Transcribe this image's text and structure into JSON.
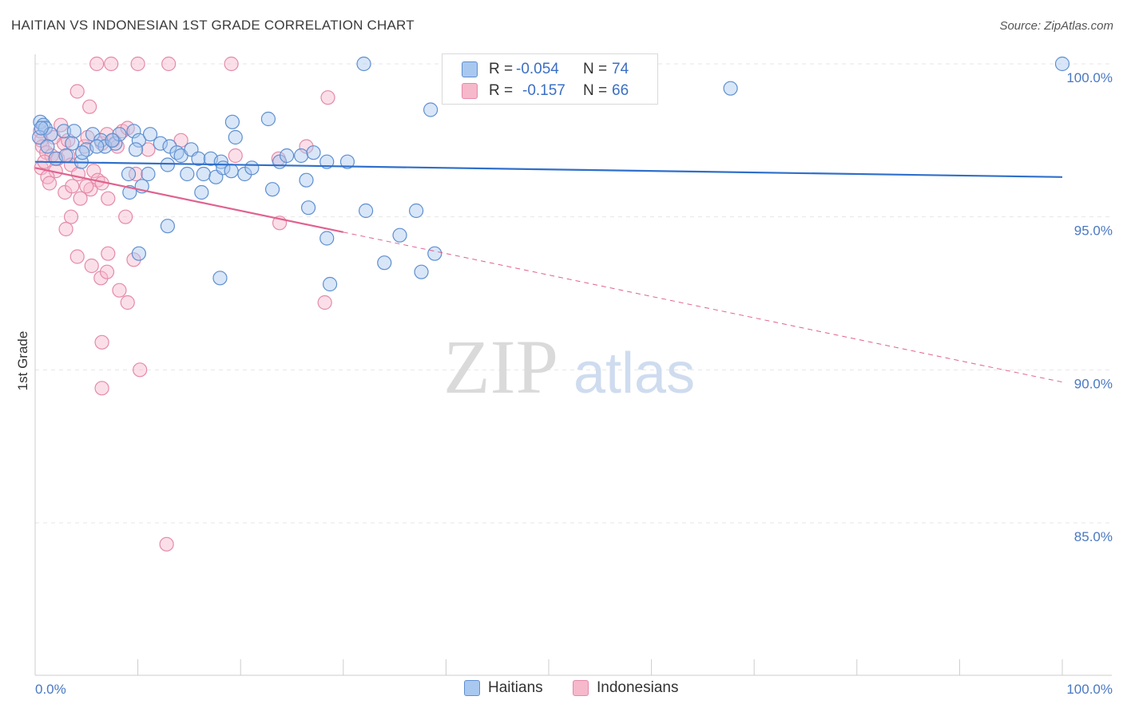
{
  "title": "HAITIAN VS INDONESIAN 1ST GRADE CORRELATION CHART",
  "source": "Source: ZipAtlas.com",
  "watermark": {
    "zip": "ZIP",
    "atlas": "atlas"
  },
  "colors": {
    "blue_fill": "#a9c8ef",
    "blue_stroke": "#5e8fd0",
    "blue_line": "#2f6fcb",
    "pink_fill": "#f6b8cb",
    "pink_stroke": "#e58aa8",
    "pink_line": "#e0628f",
    "tick_text": "#4a78c2",
    "grid": "#e6e6e6"
  },
  "legend": {
    "rows": [
      {
        "r_label": "R =",
        "r_value": "-0.054",
        "n_label": "N =",
        "n_value": "74"
      },
      {
        "r_label": "R =",
        "r_value": "-0.157",
        "n_label": "N =",
        "n_value": "66"
      }
    ]
  },
  "chart_data": {
    "type": "scatter",
    "title": "HAITIAN VS INDONESIAN 1ST GRADE CORRELATION CHART",
    "xlabel": "",
    "ylabel": "1st Grade",
    "xlim": [
      0,
      100
    ],
    "ylim": [
      80.5,
      100.8
    ],
    "x_tick_labels": [
      "0.0%",
      "100.0%"
    ],
    "y_ticks": [
      100,
      95,
      90,
      85
    ],
    "y_tick_labels": [
      "100.0%",
      "95.0%",
      "90.0%",
      "85.0%"
    ],
    "grid": true,
    "series": [
      {
        "name": "Haitians",
        "r": -0.054,
        "n": 74,
        "trend": {
          "x0": 0,
          "y0": 96.8,
          "x1": 100,
          "y1": 96.3,
          "solid_until": 100
        },
        "points": [
          [
            0.5,
            98.1
          ],
          [
            0.8,
            98.0
          ],
          [
            1.0,
            97.9
          ],
          [
            0.4,
            97.6
          ],
          [
            1.5,
            97.7
          ],
          [
            2.8,
            97.8
          ],
          [
            3.8,
            97.8
          ],
          [
            3.6,
            97.4
          ],
          [
            5.0,
            97.2
          ],
          [
            5.6,
            97.7
          ],
          [
            6.4,
            97.5
          ],
          [
            6.8,
            97.3
          ],
          [
            7.8,
            97.4
          ],
          [
            8.2,
            97.7
          ],
          [
            9.6,
            97.8
          ],
          [
            10.1,
            97.5
          ],
          [
            11.2,
            97.7
          ],
          [
            12.2,
            97.4
          ],
          [
            13.1,
            97.3
          ],
          [
            13.8,
            97.1
          ],
          [
            14.2,
            97.0
          ],
          [
            15.2,
            97.2
          ],
          [
            15.9,
            96.9
          ],
          [
            16.4,
            96.4
          ],
          [
            17.1,
            96.9
          ],
          [
            17.6,
            96.3
          ],
          [
            18.1,
            96.8
          ],
          [
            19.2,
            98.1
          ],
          [
            19.5,
            97.6
          ],
          [
            20.4,
            96.4
          ],
          [
            21.1,
            96.6
          ],
          [
            22.7,
            98.2
          ],
          [
            23.8,
            96.8
          ],
          [
            24.5,
            97.0
          ],
          [
            25.9,
            97.0
          ],
          [
            26.4,
            96.2
          ],
          [
            27.1,
            97.1
          ],
          [
            9.1,
            96.4
          ],
          [
            9.2,
            95.8
          ],
          [
            10.4,
            96.0
          ],
          [
            11.0,
            96.4
          ],
          [
            12.9,
            96.7
          ],
          [
            14.8,
            96.4
          ],
          [
            16.2,
            95.8
          ],
          [
            18.3,
            96.6
          ],
          [
            19.1,
            96.5
          ],
          [
            23.1,
            95.9
          ],
          [
            26.6,
            95.3
          ],
          [
            32.2,
            95.2
          ],
          [
            37.1,
            95.2
          ],
          [
            28.4,
            96.8
          ],
          [
            30.4,
            96.8
          ],
          [
            12.9,
            94.7
          ],
          [
            10.1,
            93.8
          ],
          [
            18.0,
            93.0
          ],
          [
            28.4,
            94.3
          ],
          [
            35.5,
            94.4
          ],
          [
            34.0,
            93.5
          ],
          [
            37.6,
            93.2
          ],
          [
            38.9,
            93.8
          ],
          [
            28.7,
            92.8
          ],
          [
            32.0,
            100.0
          ],
          [
            38.5,
            98.5
          ],
          [
            67.7,
            99.2
          ],
          [
            100.0,
            100.0
          ],
          [
            0.6,
            97.9
          ],
          [
            1.2,
            97.3
          ],
          [
            2.0,
            96.9
          ],
          [
            4.5,
            96.8
          ],
          [
            6.0,
            97.3
          ],
          [
            3.0,
            97.0
          ],
          [
            7.5,
            97.5
          ],
          [
            9.8,
            97.2
          ],
          [
            4.6,
            97.1
          ]
        ]
      },
      {
        "name": "Indonesians",
        "r": -0.157,
        "n": 66,
        "trend": {
          "x0": 0,
          "y0": 96.6,
          "x1": 100,
          "y1": 89.6,
          "solid_until": 30
        },
        "points": [
          [
            6.0,
            100.0
          ],
          [
            7.4,
            100.0
          ],
          [
            10.0,
            100.0
          ],
          [
            13.0,
            100.0
          ],
          [
            19.1,
            100.0
          ],
          [
            4.1,
            99.1
          ],
          [
            5.3,
            98.6
          ],
          [
            28.5,
            98.9
          ],
          [
            0.5,
            97.8
          ],
          [
            0.6,
            97.5
          ],
          [
            0.7,
            97.3
          ],
          [
            1.1,
            97.1
          ],
          [
            1.6,
            97.0
          ],
          [
            2.0,
            96.5
          ],
          [
            0.6,
            96.6
          ],
          [
            1.2,
            96.3
          ],
          [
            2.2,
            96.9
          ],
          [
            2.8,
            97.4
          ],
          [
            3.2,
            97.0
          ],
          [
            3.5,
            96.7
          ],
          [
            4.2,
            96.4
          ],
          [
            4.8,
            97.3
          ],
          [
            5.1,
            97.6
          ],
          [
            5.7,
            96.5
          ],
          [
            6.1,
            96.2
          ],
          [
            6.5,
            97.4
          ],
          [
            7.0,
            97.7
          ],
          [
            7.6,
            97.5
          ],
          [
            8.5,
            97.8
          ],
          [
            9.0,
            97.9
          ],
          [
            9.8,
            96.4
          ],
          [
            11.0,
            97.2
          ],
          [
            14.2,
            97.5
          ],
          [
            19.5,
            97.0
          ],
          [
            23.7,
            96.9
          ],
          [
            23.8,
            94.8
          ],
          [
            2.9,
            95.8
          ],
          [
            3.6,
            96.0
          ],
          [
            4.4,
            95.6
          ],
          [
            5.4,
            95.9
          ],
          [
            6.5,
            96.1
          ],
          [
            7.1,
            95.6
          ],
          [
            8.8,
            95.0
          ],
          [
            3.5,
            95.0
          ],
          [
            3.0,
            94.6
          ],
          [
            4.1,
            93.7
          ],
          [
            5.5,
            93.4
          ],
          [
            6.4,
            93.0
          ],
          [
            7.1,
            93.8
          ],
          [
            7.0,
            93.2
          ],
          [
            8.2,
            92.6
          ],
          [
            9.0,
            92.2
          ],
          [
            9.6,
            93.6
          ],
          [
            6.5,
            90.9
          ],
          [
            6.5,
            89.4
          ],
          [
            10.2,
            90.0
          ],
          [
            12.8,
            84.3
          ],
          [
            28.2,
            92.2
          ],
          [
            26.4,
            97.3
          ],
          [
            3.2,
            97.5
          ],
          [
            1.8,
            97.6
          ],
          [
            2.5,
            98.0
          ],
          [
            5.0,
            96.0
          ],
          [
            8.0,
            97.3
          ],
          [
            0.9,
            96.8
          ],
          [
            1.4,
            96.1
          ]
        ]
      }
    ]
  },
  "bottom_legend": {
    "items": [
      "Haitians",
      "Indonesians"
    ]
  }
}
